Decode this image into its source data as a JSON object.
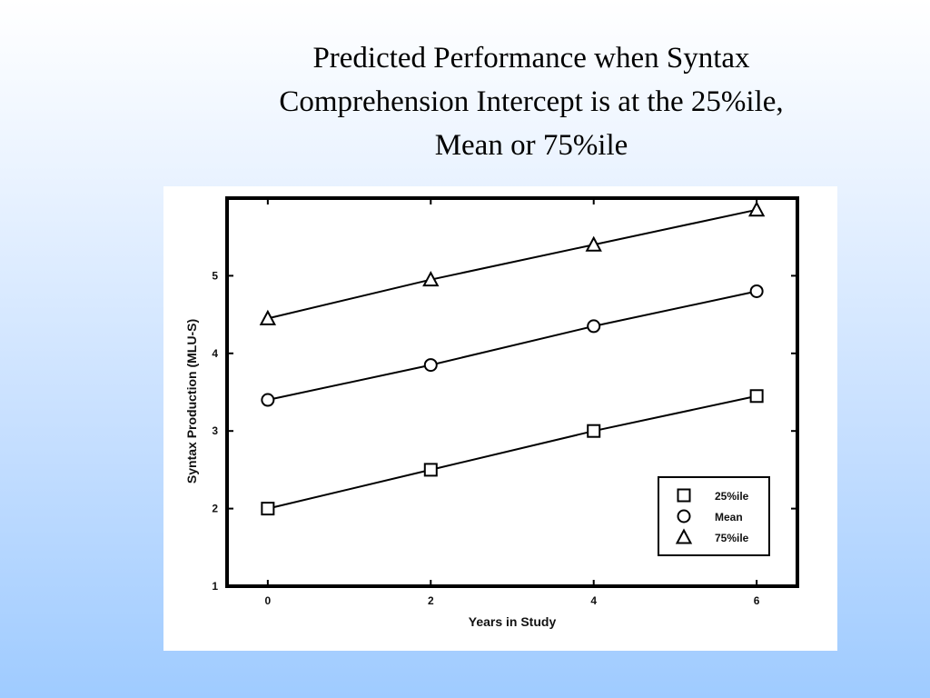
{
  "slide": {
    "title_lines": [
      "Predicted Performance when Syntax",
      "Comprehension Intercept is at the 25%ile,",
      "Mean or 75%ile"
    ]
  },
  "chart_data": {
    "type": "line",
    "x": [
      0,
      2,
      4,
      6
    ],
    "series": [
      {
        "name": "25%ile",
        "marker": "square",
        "values": [
          2.0,
          2.5,
          3.0,
          3.45
        ]
      },
      {
        "name": "Mean",
        "marker": "circle",
        "values": [
          3.4,
          3.85,
          4.35,
          4.8
        ]
      },
      {
        "name": "75%ile",
        "marker": "triangle",
        "values": [
          4.45,
          4.95,
          5.4,
          5.85
        ]
      }
    ],
    "xlabel": "Years in Study",
    "ylabel": "Syntax Production (MLU-S)",
    "xlim": [
      -0.5,
      6.5
    ],
    "ylim": [
      1,
      6
    ],
    "x_ticks": [
      "0",
      "2",
      "4",
      "6"
    ],
    "y_ticks": [
      "1",
      "2",
      "3",
      "4",
      "5"
    ],
    "grid": false,
    "legend_position": "bottom-right"
  }
}
